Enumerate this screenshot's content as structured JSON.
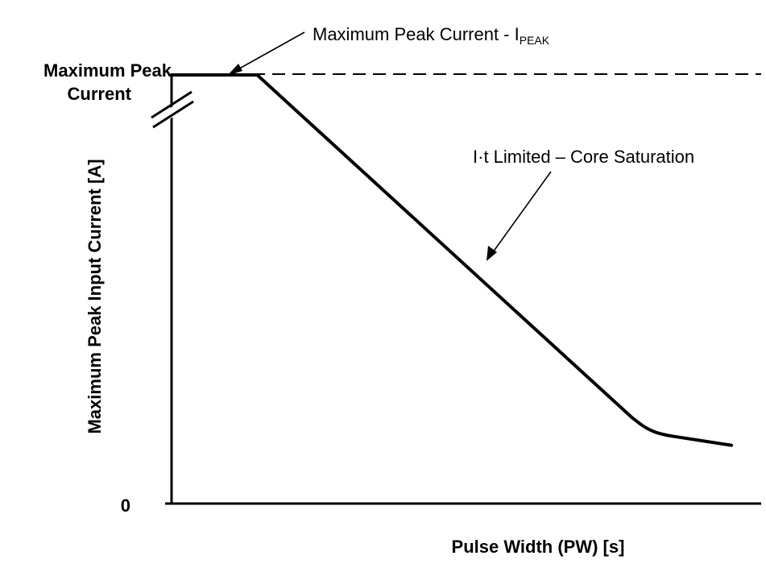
{
  "chart_data": {
    "type": "line",
    "xlabel": "Pulse Width (PW) [s]",
    "ylabel": "Maximum Peak Input Current [A]",
    "y_axis_labels": {
      "top": [
        "Maximum Peak",
        "Current"
      ],
      "zero": "0"
    },
    "reference_line": {
      "style": "dashed",
      "level": 1.0
    },
    "series": [
      {
        "x": [
          0.0,
          0.153,
          0.823,
          0.848,
          0.875,
          0.92,
          1.0
        ],
        "y": [
          1.0,
          1.0,
          0.2,
          0.175,
          0.161,
          0.152,
          0.136
        ]
      }
    ],
    "xlim": [
      0,
      1
    ],
    "ylim": [
      0,
      1
    ],
    "grid": false,
    "axis_break": "y",
    "annotations": [
      {
        "id": "ipeak",
        "text": "Maximum Peak Current - I",
        "subscript": "PEAK",
        "arrow_to": [
          0.09,
          1.0
        ]
      },
      {
        "id": "it",
        "text": "I·t Limited – Core Saturation",
        "arrow_to": [
          0.57,
          0.565
        ]
      }
    ],
    "colors": {
      "line": "#000000",
      "axes": "#000000",
      "background": "#ffffff"
    }
  }
}
